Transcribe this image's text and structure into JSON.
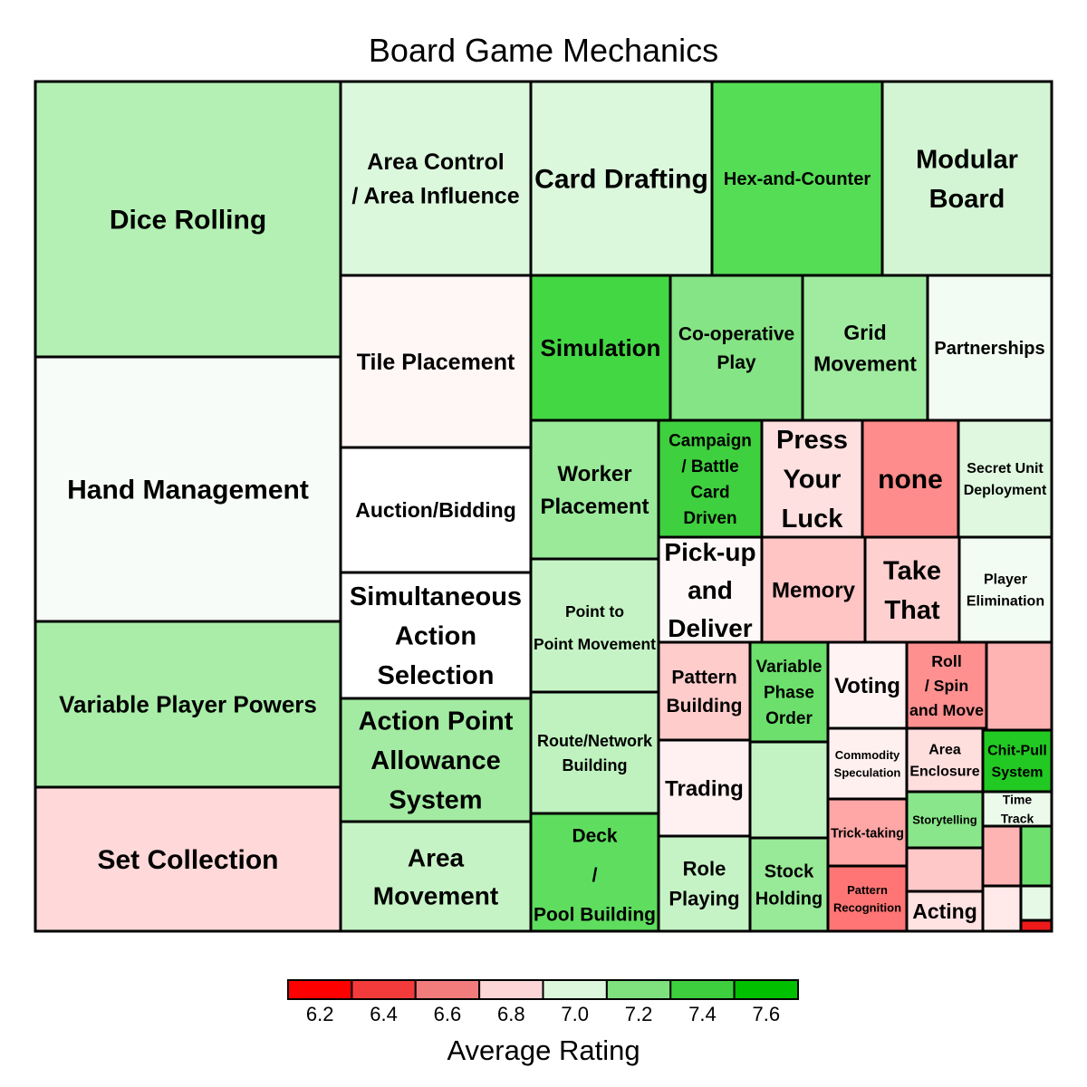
{
  "chart_data": {
    "type": "treemap",
    "title": "Board Game Mechanics",
    "colorbar": {
      "label": "Average Rating",
      "ticks": [
        "6.2",
        "6.4",
        "6.6",
        "6.8",
        "7.0",
        "7.2",
        "7.4",
        "7.6"
      ],
      "bin_colors": [
        "#ff0000",
        "#f43b3b",
        "#f27c7c",
        "#fdd7d7",
        "#dcf7dc",
        "#7ee17e",
        "#3ecf3e",
        "#00c000"
      ]
    },
    "tiles": [
      {
        "label": "Dice Rolling",
        "color": "#b4f0b4"
      },
      {
        "label": "Hand Management",
        "color": "#f8fcf8"
      },
      {
        "label": "Variable Player Powers",
        "color": "#a9eda9"
      },
      {
        "label": "Set Collection",
        "color": "#ffd9d9"
      },
      {
        "label": "Area Control / Area Influence",
        "color": "#dbf7dc"
      },
      {
        "label": "Card Drafting",
        "color": "#dbf7dc"
      },
      {
        "label": "Hex-and-Counter",
        "color": "#55dd55"
      },
      {
        "label": "Modular Board",
        "color": "#d4f5d4"
      },
      {
        "label": "Tile Placement",
        "color": "#fff6f6"
      },
      {
        "label": "Auction/Bidding",
        "color": "#ffffff"
      },
      {
        "label": "Simultaneous Action Selection",
        "color": "#ffffff"
      },
      {
        "label": "Action Point Allowance System",
        "color": "#a3eba3"
      },
      {
        "label": "Area Movement",
        "color": "#c6f3c6"
      },
      {
        "label": "Simulation",
        "color": "#44d744"
      },
      {
        "label": "Co-operative Play",
        "color": "#85e485"
      },
      {
        "label": "Grid Movement",
        "color": "#a0eba0"
      },
      {
        "label": "Partnerships",
        "color": "#f3fcf3"
      },
      {
        "label": "Worker Placement",
        "color": "#9aea9a"
      },
      {
        "label": "Point to Point Movement",
        "color": "#c5f3c5"
      },
      {
        "label": "Route/Network Building",
        "color": "#bff2bf"
      },
      {
        "label": "Deck / Pool Building",
        "color": "#5fdd5f"
      },
      {
        "label": "Campaign / Battle Card Driven",
        "color": "#3fd03f"
      },
      {
        "label": "Press Your Luck",
        "color": "#ffe0e0"
      },
      {
        "label": "none",
        "color": "#ff8c8c"
      },
      {
        "label": "Secret Unit Deployment",
        "color": "#dff8df"
      },
      {
        "label": "Pick-up and Deliver",
        "color": "#fff8f8"
      },
      {
        "label": "Memory",
        "color": "#ffc4c4"
      },
      {
        "label": "Take That",
        "color": "#ffd0d0"
      },
      {
        "label": "Player Elimination",
        "color": "#f3fcf3"
      },
      {
        "label": "Pattern Building",
        "color": "#ffcccc"
      },
      {
        "label": "Variable Phase Order",
        "color": "#6cdf6c"
      },
      {
        "label": "Voting",
        "color": "#fff3f3"
      },
      {
        "label": "Roll / Spin and Move",
        "color": "#ff9090"
      },
      {
        "label": "",
        "color": "#ffb4b4"
      },
      {
        "label": "Trading",
        "color": "#fff1f1"
      },
      {
        "label": "",
        "color": "#c3f3c3"
      },
      {
        "label": "Commodity Speculation",
        "color": "#fff0f0"
      },
      {
        "label": "Area Enclosure",
        "color": "#ffdede"
      },
      {
        "label": "Chit-Pull System",
        "color": "#22c922"
      },
      {
        "label": "Trick-taking",
        "color": "#ffa6a6"
      },
      {
        "label": "Storytelling",
        "color": "#8ae68a"
      },
      {
        "label": "Time Track",
        "color": "#ecfaec"
      },
      {
        "label": "Role Playing",
        "color": "#c6f3c6"
      },
      {
        "label": "Stock Holding",
        "color": "#98e998"
      },
      {
        "label": "Pattern Recognition",
        "color": "#ff7575"
      },
      {
        "label": "",
        "color": "#ffc8c8"
      },
      {
        "label": "Acting",
        "color": "#ffe2e2"
      },
      {
        "label": "",
        "color": "#ffb4b4"
      },
      {
        "label": "",
        "color": "#6ee06e"
      },
      {
        "label": "",
        "color": "#ffe9e9"
      },
      {
        "label": "",
        "color": "#e6f9e6"
      },
      {
        "label": "",
        "color": "#ee1a1a"
      }
    ]
  }
}
